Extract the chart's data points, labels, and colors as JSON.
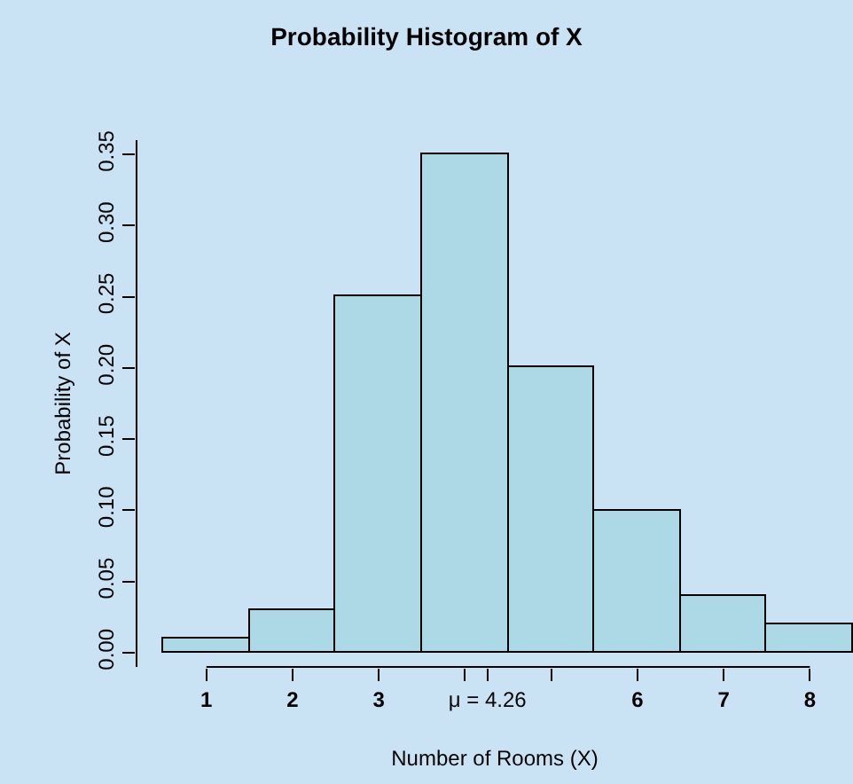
{
  "chart_data": {
    "type": "histogram",
    "title": "Probability Histogram of X",
    "xlabel": "Number of Rooms (X)",
    "ylabel": "Probability of X",
    "bins": [
      0.5,
      1.5,
      2.5,
      3.5,
      4.5,
      5.5,
      6.5,
      7.5,
      8.5
    ],
    "values": [
      0.01,
      0.03,
      0.25,
      0.35,
      0.2,
      0.1,
      0.04,
      0.02
    ],
    "color": "#add8e6",
    "xlim": [
      0.19,
      8.5
    ],
    "xticks": [
      1,
      2,
      3,
      {
        "value": 4,
        "label": null
      },
      {
        "value": 4.26,
        "label": "μ = 4.26"
      },
      {
        "value": 5,
        "label": null
      },
      6,
      7,
      8
    ],
    "ylim": [
      -0.01,
      0.36
    ],
    "yticks": [
      {
        "value": 0,
        "label": "0.00"
      },
      {
        "value": 0.05,
        "label": "0.05"
      },
      {
        "value": 0.1,
        "label": "0.10"
      },
      {
        "value": 0.15,
        "label": "0.15"
      },
      {
        "value": 0.2,
        "label": "0.20"
      },
      {
        "value": 0.25,
        "label": "0.25"
      },
      {
        "value": 0.3,
        "label": "0.30"
      },
      {
        "value": 0.35,
        "label": "0.35"
      }
    ],
    "grid": false
  }
}
